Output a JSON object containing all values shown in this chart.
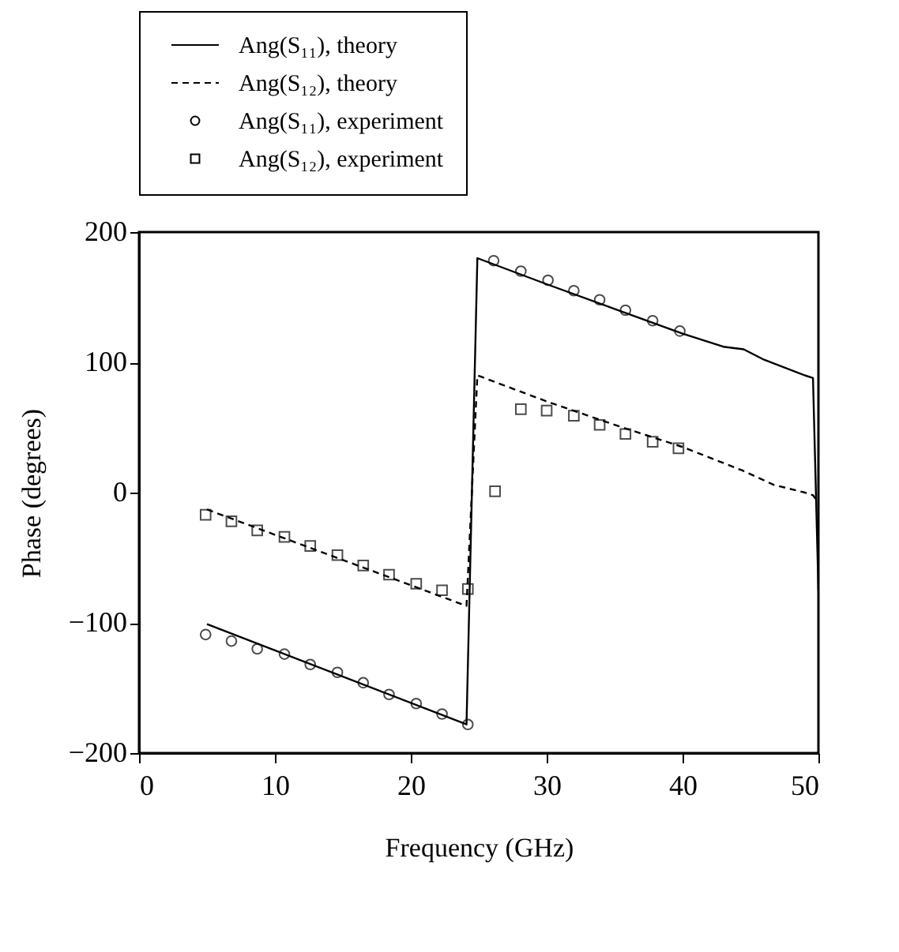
{
  "chart_data": {
    "type": "line",
    "xlabel": "Frequency (GHz)",
    "ylabel": "Phase (degrees)",
    "xlim": [
      0,
      50
    ],
    "xticks": [
      0,
      10,
      20,
      30,
      40,
      50
    ],
    "ylim": [
      -200,
      200
    ],
    "yticks": [
      -200,
      -100,
      0,
      100,
      200
    ],
    "grid": false,
    "legend": "top",
    "series": [
      {
        "name": "Ang(S₁₁), theory",
        "type": "line",
        "line_style": "solid",
        "color": "#000000",
        "x": [
          5,
          24.1,
          24.9,
          30,
          35,
          40,
          43,
          44.5,
          46,
          49,
          49.6,
          50
        ],
        "values": [
          -101,
          -178,
          180,
          160,
          141,
          122,
          112,
          110,
          102,
          90,
          88,
          -75
        ]
      },
      {
        "name": "Ang(S₁₂), theory",
        "type": "line",
        "line_style": "dashed",
        "color": "#000000",
        "x": [
          5,
          24.1,
          24.9,
          30,
          35,
          40,
          44.4,
          46.7,
          49,
          49.6,
          50
        ],
        "values": [
          -13,
          -87,
          90,
          70,
          52,
          35,
          17,
          6,
          0,
          -2,
          -8
        ]
      },
      {
        "name": "Ang(S₁₁), experiment",
        "type": "scatter",
        "marker": "circle",
        "color": "#000000",
        "x": [
          4.9,
          6.8,
          8.7,
          10.7,
          12.6,
          14.6,
          16.5,
          18.4,
          20.4,
          22.3,
          24.2,
          26.1,
          28.1,
          30.1,
          32.0,
          33.9,
          35.8,
          37.8,
          39.8
        ],
        "values": [
          -109,
          -114,
          -120,
          -124,
          -132,
          -138,
          -146,
          -155,
          -162,
          -170,
          -178,
          178,
          170,
          163,
          155,
          148,
          140,
          132,
          124
        ]
      },
      {
        "name": "Ang(S₁₂), experiment",
        "type": "scatter",
        "marker": "square",
        "color": "#000000",
        "x": [
          4.9,
          6.8,
          8.7,
          10.7,
          12.6,
          14.6,
          16.5,
          18.4,
          20.4,
          22.3,
          24.2,
          26.2,
          28.1,
          30.0,
          32.0,
          33.9,
          35.8,
          37.8,
          39.7
        ],
        "values": [
          -17,
          -22,
          -29,
          -34,
          -41,
          -48,
          -56,
          -63,
          -70,
          -75,
          -74,
          1,
          64,
          63,
          59,
          52,
          45,
          39,
          34
        ]
      }
    ]
  }
}
